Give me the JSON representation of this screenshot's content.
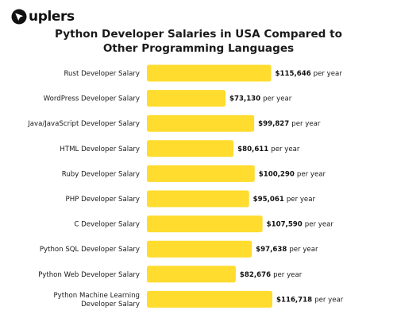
{
  "brand": {
    "name": "uplers",
    "logo_icon": "arrow-cursor-icon",
    "logo_color": "#111111"
  },
  "colors": {
    "bar": "#FFDC2E",
    "text": "#1a1a1a"
  },
  "chart_data": {
    "type": "bar",
    "orientation": "horizontal",
    "title_lines": [
      "Python Developer Salaries in USA Compared to",
      "Other Programming Languages"
    ],
    "xlabel": "",
    "ylabel": "",
    "grid": false,
    "legend": "none",
    "xlim": [
      0,
      120000
    ],
    "unit_suffix": "per year",
    "categories": [
      [
        "Rust Developer Salary"
      ],
      [
        "WordPress Developer Salary"
      ],
      [
        "Java/JavaScript Developer Salary"
      ],
      [
        "HTML Developer Salary"
      ],
      [
        "Ruby Developer Salary"
      ],
      [
        "PHP Developer Salary"
      ],
      [
        "C Developer Salary"
      ],
      [
        "Python SQL Developer Salary"
      ],
      [
        "Python Web Developer Salary"
      ],
      [
        "Python Machine Learning",
        "Developer Salary"
      ]
    ],
    "values": [
      115646,
      73130,
      99827,
      80611,
      100290,
      95061,
      107590,
      97638,
      82676,
      116718
    ],
    "value_labels": [
      "$115,646",
      "$73,130",
      "$99,827",
      "$80,611",
      "$100,290",
      "$95,061",
      "$107,590",
      "$97,638",
      "$82,676",
      "$116,718"
    ]
  }
}
